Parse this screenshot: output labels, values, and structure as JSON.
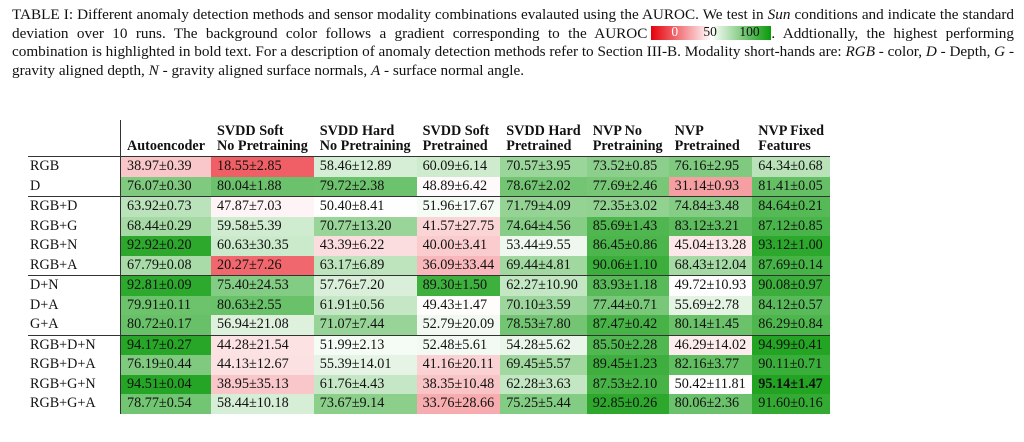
{
  "caption": {
    "part1": "TABLE I: Different anomaly detection methods and sensor modality combinations evalauted using the AUROC. We test in ",
    "sun": "Sun",
    "part2": " conditions and indicate the standard deviation over 10 runs. The background color follows a gradient corresponding to the AUROC",
    "part3": " Addtionally, the highest performing combination is highlighted in bold text. For a description of anomaly detection methods refer to Section III-B. Modality short-hands are: ",
    "rgb": "RGB",
    "rgb_desc": " - color, ",
    "d": "D",
    "d_desc": " - Depth, ",
    "g": "G",
    "g_desc": " - gravity aligned depth, ",
    "n": "N",
    "n_desc": " - gravity aligned surface normals, ",
    "a": "A",
    "a_desc": " - surface normal angle."
  },
  "legend": {
    "low": "0",
    "mid": "50",
    "high": "100",
    "colors": {
      "low": "#e6000a",
      "mid": "#ffffff",
      "high": "#0a9a0a"
    }
  },
  "columns": [
    {
      "line1": "Autoencoder",
      "line2": ""
    },
    {
      "line1": "SVDD Soft",
      "line2": "No Pretraining"
    },
    {
      "line1": "SVDD Hard",
      "line2": "No Pretraining"
    },
    {
      "line1": "SVDD Soft",
      "line2": "Pretrained"
    },
    {
      "line1": "SVDD Hard",
      "line2": "Pretrained"
    },
    {
      "line1": "NVP No",
      "line2": "Pretraining"
    },
    {
      "line1": "NVP",
      "line2": "Pretrained"
    },
    {
      "line1": "NVP Fixed",
      "line2": "Features"
    }
  ],
  "rows": [
    {
      "label": "RGB",
      "group_end": false,
      "cells": [
        {
          "text": "38.97±0.39",
          "mean": 38.97
        },
        {
          "text": "18.55±2.85",
          "mean": 18.55
        },
        {
          "text": "58.46±12.89",
          "mean": 58.46
        },
        {
          "text": "60.09±6.14",
          "mean": 60.09
        },
        {
          "text": "70.57±3.95",
          "mean": 70.57
        },
        {
          "text": "73.52±0.85",
          "mean": 73.52
        },
        {
          "text": "76.16±2.95",
          "mean": 76.16
        },
        {
          "text": "64.34±0.68",
          "mean": 64.34
        }
      ]
    },
    {
      "label": "D",
      "group_end": true,
      "cells": [
        {
          "text": "76.07±0.30",
          "mean": 76.07
        },
        {
          "text": "80.04±1.88",
          "mean": 80.04
        },
        {
          "text": "79.72±2.38",
          "mean": 79.72
        },
        {
          "text": "48.89±6.42",
          "mean": 48.89
        },
        {
          "text": "78.67±2.02",
          "mean": 78.67
        },
        {
          "text": "77.69±2.46",
          "mean": 77.69
        },
        {
          "text": "31.14±0.93",
          "mean": 31.14
        },
        {
          "text": "81.41±0.05",
          "mean": 81.41
        }
      ]
    },
    {
      "label": "RGB+D",
      "group_end": false,
      "cells": [
        {
          "text": "63.92±0.73",
          "mean": 63.92
        },
        {
          "text": "47.87±7.03",
          "mean": 47.87
        },
        {
          "text": "50.40±8.41",
          "mean": 50.4
        },
        {
          "text": "51.96±17.67",
          "mean": 51.96
        },
        {
          "text": "71.79±4.09",
          "mean": 71.79
        },
        {
          "text": "72.35±3.02",
          "mean": 72.35
        },
        {
          "text": "74.84±3.48",
          "mean": 74.84
        },
        {
          "text": "84.64±0.21",
          "mean": 84.64
        }
      ]
    },
    {
      "label": "RGB+G",
      "group_end": false,
      "cells": [
        {
          "text": "68.44±0.29",
          "mean": 68.44
        },
        {
          "text": "59.58±5.39",
          "mean": 59.58
        },
        {
          "text": "70.77±13.20",
          "mean": 70.77
        },
        {
          "text": "41.57±27.75",
          "mean": 41.57
        },
        {
          "text": "74.64±4.56",
          "mean": 74.64
        },
        {
          "text": "85.69±1.43",
          "mean": 85.69
        },
        {
          "text": "83.12±3.21",
          "mean": 83.12
        },
        {
          "text": "87.12±0.85",
          "mean": 87.12
        }
      ]
    },
    {
      "label": "RGB+N",
      "group_end": false,
      "cells": [
        {
          "text": "92.92±0.20",
          "mean": 92.92
        },
        {
          "text": "60.63±30.35",
          "mean": 60.63
        },
        {
          "text": "43.39±6.22",
          "mean": 43.39
        },
        {
          "text": "40.00±3.41",
          "mean": 40.0
        },
        {
          "text": "53.44±9.55",
          "mean": 53.44
        },
        {
          "text": "86.45±0.86",
          "mean": 86.45
        },
        {
          "text": "45.04±13.28",
          "mean": 45.04
        },
        {
          "text": "93.12±1.00",
          "mean": 93.12
        }
      ]
    },
    {
      "label": "RGB+A",
      "group_end": true,
      "cells": [
        {
          "text": "67.79±0.08",
          "mean": 67.79
        },
        {
          "text": "20.27±7.26",
          "mean": 20.27
        },
        {
          "text": "63.17±6.89",
          "mean": 63.17
        },
        {
          "text": "36.09±33.44",
          "mean": 36.09
        },
        {
          "text": "69.44±4.81",
          "mean": 69.44
        },
        {
          "text": "90.06±1.10",
          "mean": 90.06
        },
        {
          "text": "68.43±12.04",
          "mean": 68.43
        },
        {
          "text": "87.69±0.14",
          "mean": 87.69
        }
      ]
    },
    {
      "label": "D+N",
      "group_end": false,
      "cells": [
        {
          "text": "92.81±0.09",
          "mean": 92.81
        },
        {
          "text": "75.40±24.53",
          "mean": 75.4
        },
        {
          "text": "57.76±7.20",
          "mean": 57.76
        },
        {
          "text": "89.30±1.50",
          "mean": 89.3
        },
        {
          "text": "62.27±10.90",
          "mean": 62.27
        },
        {
          "text": "83.93±1.18",
          "mean": 83.93
        },
        {
          "text": "49.72±10.93",
          "mean": 49.72
        },
        {
          "text": "90.08±0.97",
          "mean": 90.08
        }
      ]
    },
    {
      "label": "D+A",
      "group_end": false,
      "cells": [
        {
          "text": "79.91±0.11",
          "mean": 79.91
        },
        {
          "text": "80.63±2.55",
          "mean": 80.63
        },
        {
          "text": "61.91±0.56",
          "mean": 61.91
        },
        {
          "text": "49.43±1.47",
          "mean": 49.43
        },
        {
          "text": "70.10±3.59",
          "mean": 70.1
        },
        {
          "text": "77.44±0.71",
          "mean": 77.44
        },
        {
          "text": "55.69±2.78",
          "mean": 55.69
        },
        {
          "text": "84.12±0.57",
          "mean": 84.12
        }
      ]
    },
    {
      "label": "G+A",
      "group_end": true,
      "cells": [
        {
          "text": "80.72±0.17",
          "mean": 80.72
        },
        {
          "text": "56.94±21.08",
          "mean": 56.94
        },
        {
          "text": "71.07±7.44",
          "mean": 71.07
        },
        {
          "text": "52.79±20.09",
          "mean": 52.79
        },
        {
          "text": "78.53±7.80",
          "mean": 78.53
        },
        {
          "text": "87.47±0.42",
          "mean": 87.47
        },
        {
          "text": "80.14±1.45",
          "mean": 80.14
        },
        {
          "text": "86.29±0.84",
          "mean": 86.29
        }
      ]
    },
    {
      "label": "RGB+D+N",
      "group_end": false,
      "cells": [
        {
          "text": "94.17±0.27",
          "mean": 94.17
        },
        {
          "text": "44.28±21.54",
          "mean": 44.28
        },
        {
          "text": "51.99±2.13",
          "mean": 51.99
        },
        {
          "text": "52.48±5.61",
          "mean": 52.48
        },
        {
          "text": "54.28±5.62",
          "mean": 54.28
        },
        {
          "text": "85.50±2.28",
          "mean": 85.5
        },
        {
          "text": "46.29±14.02",
          "mean": 46.29
        },
        {
          "text": "94.99±0.41",
          "mean": 94.99
        }
      ]
    },
    {
      "label": "RGB+D+A",
      "group_end": false,
      "cells": [
        {
          "text": "76.19±0.44",
          "mean": 76.19
        },
        {
          "text": "44.13±12.67",
          "mean": 44.13
        },
        {
          "text": "55.39±14.01",
          "mean": 55.39
        },
        {
          "text": "41.16±20.11",
          "mean": 41.16
        },
        {
          "text": "69.45±5.57",
          "mean": 69.45
        },
        {
          "text": "89.45±1.23",
          "mean": 89.45
        },
        {
          "text": "82.16±3.77",
          "mean": 82.16
        },
        {
          "text": "90.11±0.71",
          "mean": 90.11
        }
      ]
    },
    {
      "label": "RGB+G+N",
      "group_end": false,
      "cells": [
        {
          "text": "94.51±0.04",
          "mean": 94.51
        },
        {
          "text": "38.95±35.13",
          "mean": 38.95
        },
        {
          "text": "61.76±4.43",
          "mean": 61.76
        },
        {
          "text": "38.35±10.48",
          "mean": 38.35
        },
        {
          "text": "62.28±3.63",
          "mean": 62.28
        },
        {
          "text": "87.53±2.10",
          "mean": 87.53
        },
        {
          "text": "50.42±11.81",
          "mean": 50.42
        },
        {
          "text": "95.14±1.47",
          "mean": 95.14,
          "best": true
        }
      ]
    },
    {
      "label": "RGB+G+A",
      "group_end": false,
      "cells": [
        {
          "text": "78.77±0.54",
          "mean": 78.77
        },
        {
          "text": "58.44±10.18",
          "mean": 58.44
        },
        {
          "text": "73.67±9.14",
          "mean": 73.67
        },
        {
          "text": "33.76±28.66",
          "mean": 33.76
        },
        {
          "text": "75.25±5.44",
          "mean": 75.25
        },
        {
          "text": "92.85±0.26",
          "mean": 92.85
        },
        {
          "text": "80.06±2.36",
          "mean": 80.06
        },
        {
          "text": "91.60±0.16",
          "mean": 91.6
        }
      ]
    }
  ]
}
